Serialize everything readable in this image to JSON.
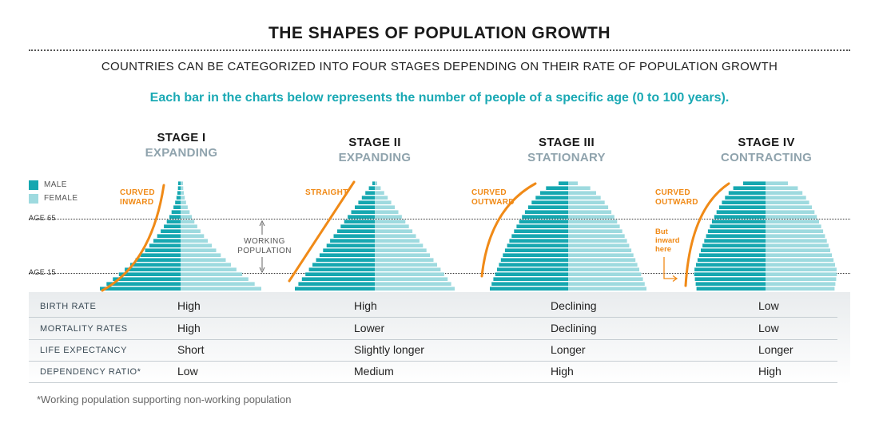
{
  "title": "THE SHAPES OF POPULATION GROWTH",
  "subtitle": "COUNTRIES CAN BE CATEGORIZED INTO FOUR STAGES DEPENDING ON THEIR RATE OF POPULATION GROWTH",
  "note": "Each bar in the charts below represents the number of people of a specific age (0 to 100 years).",
  "colors": {
    "male": "#15a7b0",
    "female": "#9edadf",
    "accent": "#f08a17",
    "teal_text": "#1aa9b4",
    "up": "#62b04a",
    "down": "#d7232e"
  },
  "legend": {
    "male": "MALE",
    "female": "FEMALE"
  },
  "age_markers": {
    "age65": "AGE 65",
    "age15": "AGE 15"
  },
  "working_population": {
    "line1": "WORKING",
    "line2": "POPULATION"
  },
  "stages": [
    {
      "number": "STAGE I",
      "type": "EXPANDING",
      "annotation": [
        "CURVED",
        "INWARD"
      ],
      "shape": "expanding-concave"
    },
    {
      "number": "STAGE II",
      "type": "EXPANDING",
      "annotation": [
        "STRAIGHT"
      ],
      "shape": "triangle"
    },
    {
      "number": "STAGE III",
      "type": "STATIONARY",
      "annotation": [
        "CURVED",
        "OUTWARD"
      ],
      "shape": "stationary-convex"
    },
    {
      "number": "STAGE IV",
      "type": "CONTRACTING",
      "annotation": [
        "CURVED",
        "OUTWARD"
      ],
      "note": [
        "But",
        "inward",
        "here"
      ],
      "shape": "contracting-bulge"
    }
  ],
  "table": {
    "rows": [
      {
        "label": "BIRTH RATE",
        "cells": [
          {
            "dir": "up",
            "text": "High"
          },
          {
            "dir": "up",
            "text": "High"
          },
          {
            "dir": "down",
            "text": "Declining"
          },
          {
            "dir": "down",
            "text": "Low"
          }
        ]
      },
      {
        "label": "MORTALITY RATES",
        "cells": [
          {
            "dir": "up",
            "text": "High"
          },
          {
            "dir": "down",
            "text": "Lower"
          },
          {
            "dir": "down",
            "text": "Declining"
          },
          {
            "dir": "down",
            "text": "Low"
          }
        ]
      },
      {
        "label": "LIFE EXPECTANCY",
        "cells": [
          {
            "dir": "down",
            "text": "Short"
          },
          {
            "dir": "up",
            "text": "Slightly longer"
          },
          {
            "dir": "up",
            "text": "Longer"
          },
          {
            "dir": "up",
            "text": "Longer"
          }
        ]
      },
      {
        "label": "DEPENDENCY RATIO*",
        "cells": [
          {
            "dir": "down",
            "text": "Low"
          },
          {
            "dir": "up",
            "text": "Medium"
          },
          {
            "dir": "up",
            "text": "High"
          },
          {
            "dir": "up",
            "text": "High"
          }
        ]
      }
    ]
  },
  "footnote": "*Working population supporting non-working population"
}
